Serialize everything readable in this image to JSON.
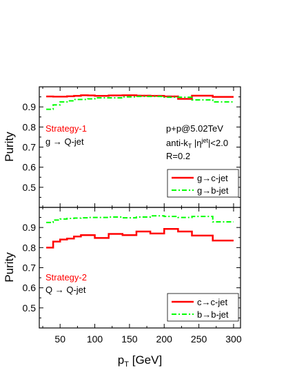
{
  "figure": {
    "xlabel_main": "p",
    "xlabel_sub": "T",
    "xlabel_unit": " [GeV]",
    "xticks": [
      50,
      100,
      150,
      200,
      250,
      300
    ],
    "xlim": [
      20,
      310
    ]
  },
  "chart_data": [
    {
      "type": "line",
      "panel": "top",
      "ylabel": "Purity",
      "ylim": [
        0.4,
        1.0
      ],
      "yticks": [
        0.5,
        0.6,
        0.7,
        0.8,
        0.9
      ],
      "annotation_left": {
        "title": "Strategy-1",
        "subtitle": "g → Q-jet"
      },
      "annotation_right": {
        "line1": "p+p@5.02TeV",
        "line2_a": "anti-k",
        "line2_a_sub": "T",
        "line2_b": " |η",
        "line2_b_sup": "jet",
        "line2_c": "|<2.0",
        "line3": "R=0.2"
      },
      "legend_position": "bottom-right",
      "bin_edges": [
        30,
        40,
        50,
        60,
        70,
        80,
        90,
        100,
        120,
        140,
        160,
        180,
        200,
        220,
        240,
        270,
        300
      ],
      "series": [
        {
          "name": "g→c-jet",
          "color": "#ff0000",
          "style": "solid",
          "values": [
            0.952,
            0.951,
            0.951,
            0.953,
            0.955,
            0.958,
            0.957,
            0.955,
            0.957,
            0.958,
            0.956,
            0.955,
            0.952,
            0.94,
            0.956,
            0.95
          ]
        },
        {
          "name": "g→b-jet",
          "color": "#00ff00",
          "style": "dashdot",
          "values": [
            0.888,
            0.91,
            0.925,
            0.93,
            0.937,
            0.937,
            0.94,
            0.945,
            0.945,
            0.95,
            0.952,
            0.952,
            0.948,
            0.948,
            0.935,
            0.925
          ]
        }
      ]
    },
    {
      "type": "line",
      "panel": "bottom",
      "ylabel": "Purity",
      "ylim": [
        0.4,
        1.0
      ],
      "yticks": [
        0.5,
        0.6,
        0.7,
        0.8,
        0.9
      ],
      "annotation_left": {
        "title": "Strategy-2",
        "subtitle": "Q → Q-jet"
      },
      "legend_position": "bottom-right",
      "bin_edges": [
        30,
        40,
        50,
        60,
        70,
        80,
        90,
        100,
        120,
        140,
        160,
        180,
        200,
        220,
        240,
        270,
        300
      ],
      "series": [
        {
          "name": "c→c-jet",
          "color": "#ff0000",
          "style": "solid",
          "values": [
            0.8,
            0.83,
            0.84,
            0.845,
            0.855,
            0.862,
            0.862,
            0.848,
            0.868,
            0.862,
            0.88,
            0.87,
            0.893,
            0.88,
            0.86,
            0.835
          ]
        },
        {
          "name": "b→b-jet",
          "color": "#00ff00",
          "style": "dashdot",
          "values": [
            0.925,
            0.937,
            0.942,
            0.945,
            0.947,
            0.948,
            0.95,
            0.95,
            0.952,
            0.948,
            0.952,
            0.958,
            0.955,
            0.95,
            0.955,
            0.928
          ]
        }
      ]
    }
  ]
}
